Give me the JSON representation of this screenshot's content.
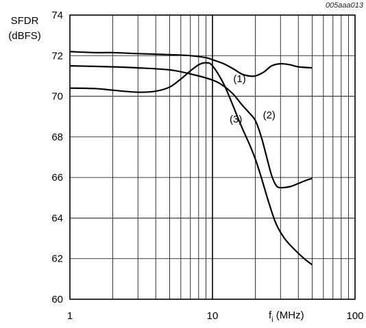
{
  "figure_id": "005aaa013",
  "chart_data": {
    "type": "line",
    "ylabel_line1": "SFDR",
    "ylabel_line2": "(dBFS)",
    "xlabel_main": "f",
    "xlabel_sub": "i",
    "xlabel_unit": " (MHz)",
    "x_scale": "log",
    "xlim": [
      1,
      100
    ],
    "ylim": [
      60,
      74
    ],
    "x_ticks": [
      1,
      10,
      100
    ],
    "x_tick_labels": [
      "1",
      "10",
      "100"
    ],
    "y_ticks": [
      60,
      62,
      64,
      66,
      68,
      70,
      72,
      74
    ],
    "y_tick_labels": [
      "60",
      "62",
      "64",
      "66",
      "68",
      "70",
      "72",
      "74"
    ],
    "grid": true,
    "series": [
      {
        "name": "(1)",
        "x": [
          1,
          1.5,
          2,
          3,
          5,
          7,
          9,
          10,
          12,
          14,
          16,
          18,
          20,
          23,
          26,
          30,
          35,
          40,
          50
        ],
        "y": [
          72.2,
          72.15,
          72.15,
          72.1,
          72.05,
          72.0,
          71.9,
          71.8,
          71.6,
          71.35,
          71.1,
          71.0,
          71.0,
          71.2,
          71.5,
          71.6,
          71.55,
          71.45,
          71.4
        ]
      },
      {
        "name": "(2)",
        "x": [
          1,
          2,
          3,
          5,
          7,
          10,
          12,
          14,
          16,
          18,
          20,
          22,
          24,
          26,
          28,
          30,
          35,
          40,
          45,
          50
        ],
        "y": [
          71.5,
          71.45,
          71.4,
          71.3,
          71.1,
          70.8,
          70.5,
          70.1,
          69.6,
          69.2,
          68.8,
          68.0,
          67.0,
          66.1,
          65.6,
          65.5,
          65.55,
          65.7,
          65.85,
          65.95
        ]
      },
      {
        "name": "(3)",
        "x": [
          1,
          1.5,
          2,
          3,
          4,
          5,
          6,
          7,
          8,
          9,
          10,
          12,
          14,
          16,
          18,
          20,
          22,
          25,
          28,
          32,
          37,
          44,
          50
        ],
        "y": [
          70.4,
          70.38,
          70.3,
          70.2,
          70.25,
          70.45,
          70.85,
          71.25,
          71.55,
          71.65,
          71.5,
          70.6,
          69.5,
          68.5,
          67.7,
          66.9,
          66.0,
          64.7,
          63.7,
          63.0,
          62.5,
          62.0,
          61.7
        ]
      }
    ],
    "annotations": [
      {
        "text": "(1)",
        "x": 15.5,
        "y": 70.7
      },
      {
        "text": "(2)",
        "x": 25,
        "y": 68.9
      },
      {
        "text": "(3)",
        "x": 14.6,
        "y": 68.7
      }
    ]
  }
}
